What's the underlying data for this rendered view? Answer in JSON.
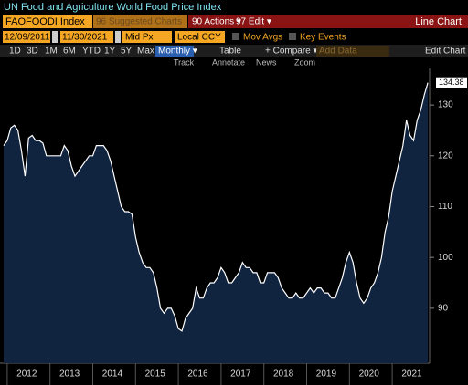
{
  "toolbar": {
    "ticker": "FAOFOODI Index",
    "suggested": "96 Suggested Charts",
    "actions": "90 Actions ▾",
    "edit": "97 Edit ▾",
    "chart_kind": "Line Chart",
    "start_date": "12/09/2011",
    "end_date": "11/30/2021",
    "price": "Mid Px",
    "currency": "Local CCY",
    "mov_avgs": "Mov Avgs",
    "key_events": "Key Events",
    "ranges": [
      "1D",
      "3D",
      "1M",
      "6M",
      "YTD",
      "1Y",
      "5Y",
      "Max"
    ],
    "period": "Monthly ▾",
    "table": "Table",
    "compare": "+ Compare ▾",
    "add_data": "Add Data",
    "edit_chart": "Edit Chart",
    "tools": [
      "Track",
      "Annotate",
      "News",
      "Zoom"
    ]
  },
  "chart_data": {
    "type": "area",
    "title": "UN Food and Agriculture World Food Price Index",
    "categories": [
      null,
      null,
      null,
      null,
      null,
      null,
      null,
      "2012",
      null,
      null,
      null,
      null,
      null,
      null,
      null,
      null,
      null,
      null,
      null,
      "2013",
      null,
      null,
      null,
      null,
      null,
      null,
      null,
      null,
      null,
      null,
      null,
      "2014",
      null,
      null,
      null,
      null,
      null,
      null,
      null,
      null,
      null,
      null,
      null,
      "2015",
      null,
      null,
      null,
      null,
      null,
      null,
      null,
      null,
      null,
      null,
      null,
      "2016",
      null,
      null,
      null,
      null,
      null,
      null,
      null,
      null,
      null,
      null,
      null,
      "2017",
      null,
      null,
      null,
      null,
      null,
      null,
      null,
      null,
      null,
      null,
      null,
      "2018",
      null,
      null,
      null,
      null,
      null,
      null,
      null,
      null,
      null,
      null,
      null,
      "2019",
      null,
      null,
      null,
      null,
      null,
      null,
      null,
      null,
      null,
      null,
      null,
      "2020",
      null,
      null,
      null,
      null,
      null,
      null,
      null,
      null,
      null,
      null,
      null,
      "2021",
      null,
      null,
      null,
      null
    ],
    "values": [
      122,
      123,
      125.5,
      126,
      125,
      121,
      116,
      123.5,
      124,
      123,
      123,
      122.5,
      120,
      120,
      120,
      120,
      120,
      122,
      121,
      118,
      116,
      117,
      118,
      119,
      120,
      120,
      122,
      122,
      122,
      121,
      119,
      116,
      113,
      110,
      109,
      109,
      108.5,
      104,
      101,
      99,
      98,
      98,
      97,
      94,
      90,
      89,
      90,
      90,
      88.5,
      86,
      85.5,
      88,
      89,
      90,
      94,
      92,
      92,
      94,
      95,
      95,
      96,
      98,
      97,
      95,
      95,
      96,
      97,
      99,
      98,
      98,
      97,
      97,
      95,
      95,
      97,
      97,
      97,
      96,
      94,
      93,
      92,
      92,
      93,
      92,
      92,
      93,
      94,
      93,
      94,
      94,
      93,
      93,
      92,
      92,
      94,
      96,
      99,
      101,
      99,
      95,
      92,
      91,
      92,
      94,
      95,
      97,
      100,
      105,
      108,
      113,
      116,
      119,
      122,
      127,
      124,
      123,
      127,
      129,
      132,
      134.38
    ],
    "color": "#ffffff",
    "fill": "#10233f",
    "ylim": [
      79.2,
      137.2
    ],
    "yticks": [
      90,
      100,
      110,
      120,
      130
    ]
  }
}
